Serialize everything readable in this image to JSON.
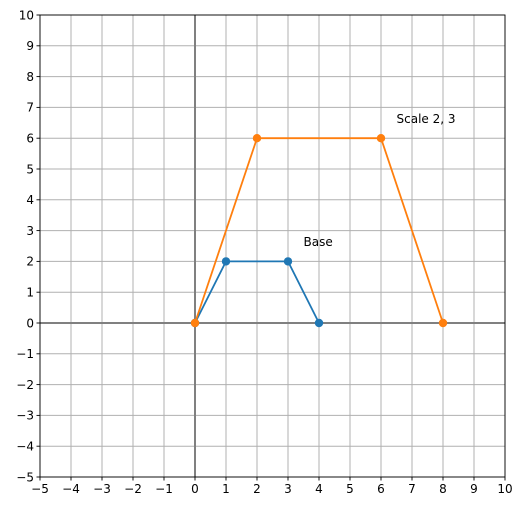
{
  "chart_data": {
    "type": "line",
    "title": "",
    "xlabel": "",
    "ylabel": "",
    "xlim": [
      -5,
      10
    ],
    "ylim": [
      -5,
      10
    ],
    "xticks": [
      -5,
      -4,
      -3,
      -2,
      -1,
      0,
      1,
      2,
      3,
      4,
      5,
      6,
      7,
      8,
      9,
      10
    ],
    "yticks": [
      -5,
      -4,
      -3,
      -2,
      -1,
      0,
      1,
      2,
      3,
      4,
      5,
      6,
      7,
      8,
      9,
      10
    ],
    "grid": true,
    "axes_lines": {
      "x": 0,
      "y": 0,
      "color": "#808080"
    },
    "series": [
      {
        "color": "#1f77b4",
        "points": [
          [
            0,
            0
          ],
          [
            1,
            2
          ],
          [
            3,
            2
          ],
          [
            4,
            0
          ]
        ]
      },
      {
        "color": "#ff7f0e",
        "points": [
          [
            0,
            0
          ],
          [
            2,
            6
          ],
          [
            6,
            6
          ],
          [
            8,
            0
          ]
        ]
      }
    ],
    "annotations": [
      {
        "text": "Base",
        "x": 3.5,
        "y": 2.5
      },
      {
        "text": "Scale 2, 3",
        "x": 6.5,
        "y": 6.5
      }
    ]
  }
}
